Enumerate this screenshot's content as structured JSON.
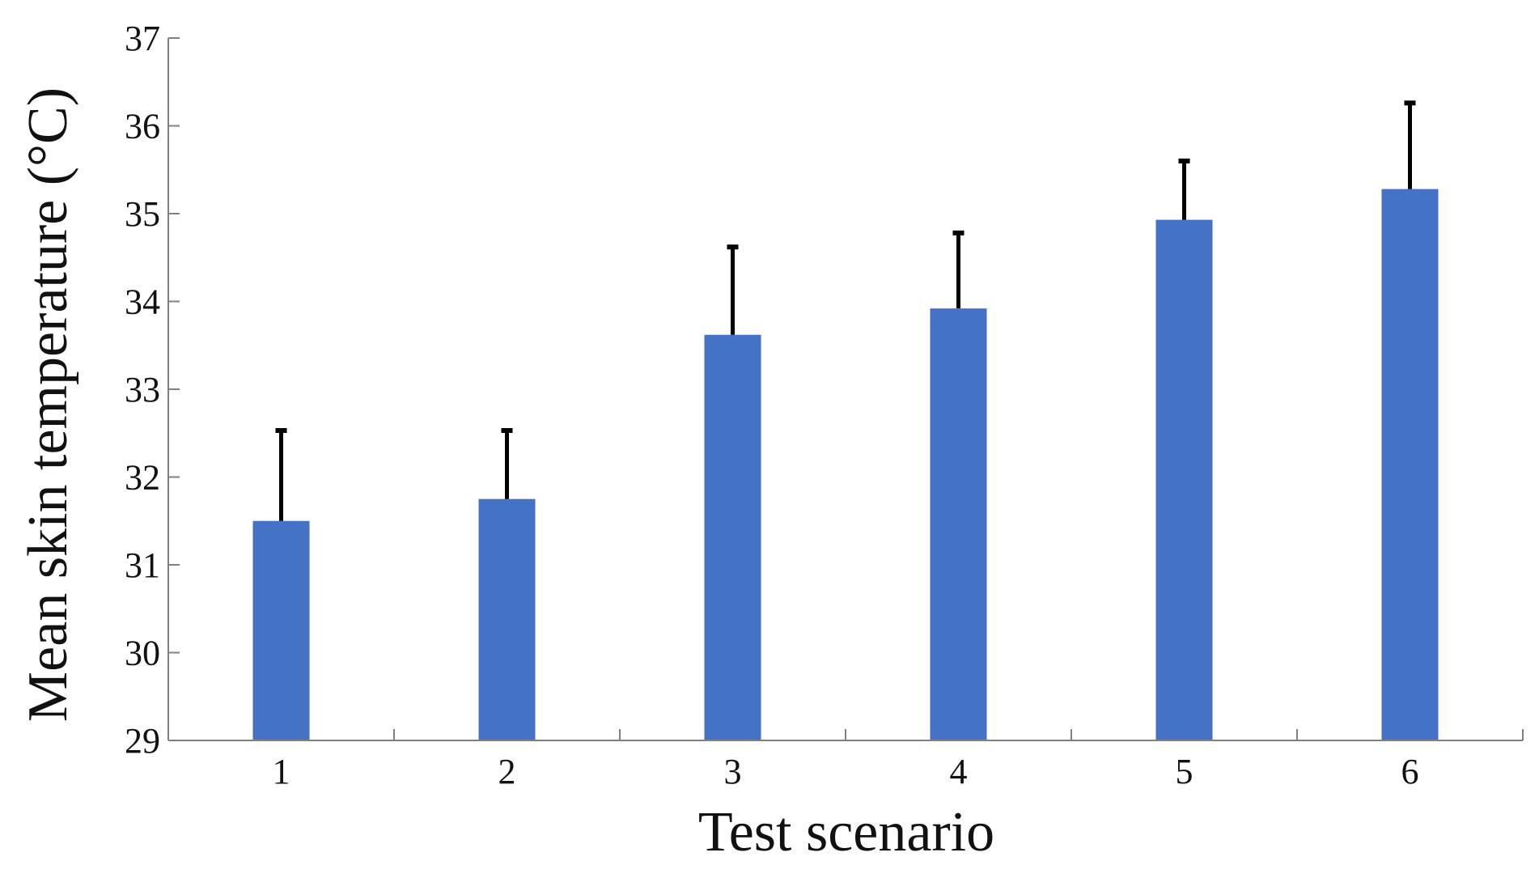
{
  "chart_data": {
    "type": "bar",
    "xlabel": "Test scenario",
    "ylabel": "Mean skin temperature (°C)",
    "categories": [
      "1",
      "2",
      "3",
      "4",
      "5",
      "6"
    ],
    "values": [
      31.5,
      31.75,
      33.62,
      33.92,
      34.93,
      35.28
    ],
    "error_upper": [
      1.03,
      0.78,
      1.0,
      0.86,
      0.67,
      0.98
    ],
    "ylim": [
      29,
      37
    ],
    "yticks": [
      "29",
      "30",
      "31",
      "32",
      "33",
      "34",
      "35",
      "36",
      "37"
    ],
    "grid": false,
    "legend": "none",
    "bar_color": "#4472C4",
    "error_bar_color": "#000000",
    "axis_color": "#808080"
  }
}
